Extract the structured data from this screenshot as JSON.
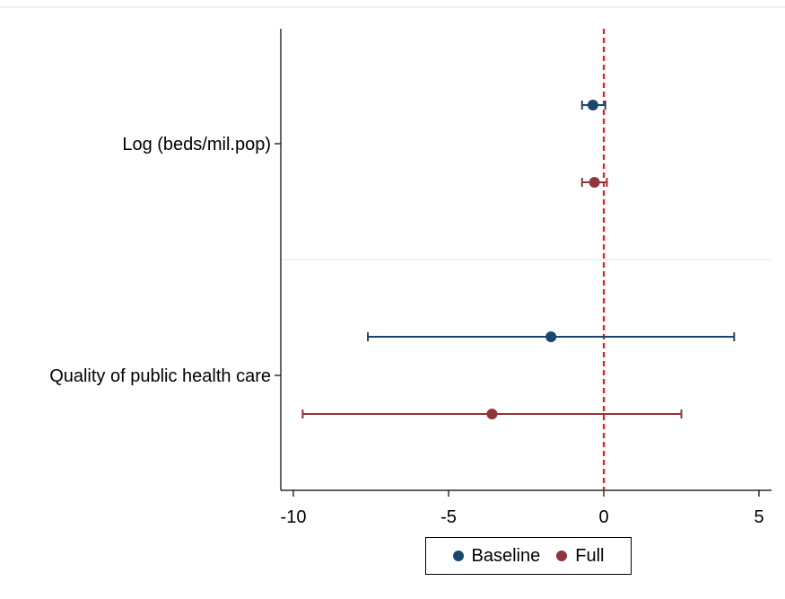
{
  "chart_data": {
    "type": "scatter",
    "subtype": "coefficient-plot",
    "title": "",
    "xlabel": "",
    "ylabel": "",
    "xlim": [
      -10.5,
      5.3
    ],
    "xticks": [
      -10,
      -5,
      0,
      5
    ],
    "reference_line": {
      "x": 0,
      "style": "dashed",
      "color": "#e41a1c"
    },
    "grid": false,
    "legend_position": "bottom",
    "categories": [
      "Log (beds/mil.pop)",
      "Quality of public health care"
    ],
    "series": [
      {
        "name": "Baseline",
        "color": "#1a476f",
        "points": [
          {
            "category": "Log (beds/mil.pop)",
            "estimate": -0.35,
            "ci_low": -0.7,
            "ci_high": 0.05
          },
          {
            "category": "Quality of public health care",
            "estimate": -1.7,
            "ci_low": -7.6,
            "ci_high": 4.2
          }
        ]
      },
      {
        "name": "Full",
        "color": "#90353b",
        "points": [
          {
            "category": "Log (beds/mil.pop)",
            "estimate": -0.3,
            "ci_low": -0.7,
            "ci_high": 0.1
          },
          {
            "category": "Quality of public health care",
            "estimate": -3.6,
            "ci_low": -9.7,
            "ci_high": 2.5
          }
        ]
      }
    ]
  }
}
